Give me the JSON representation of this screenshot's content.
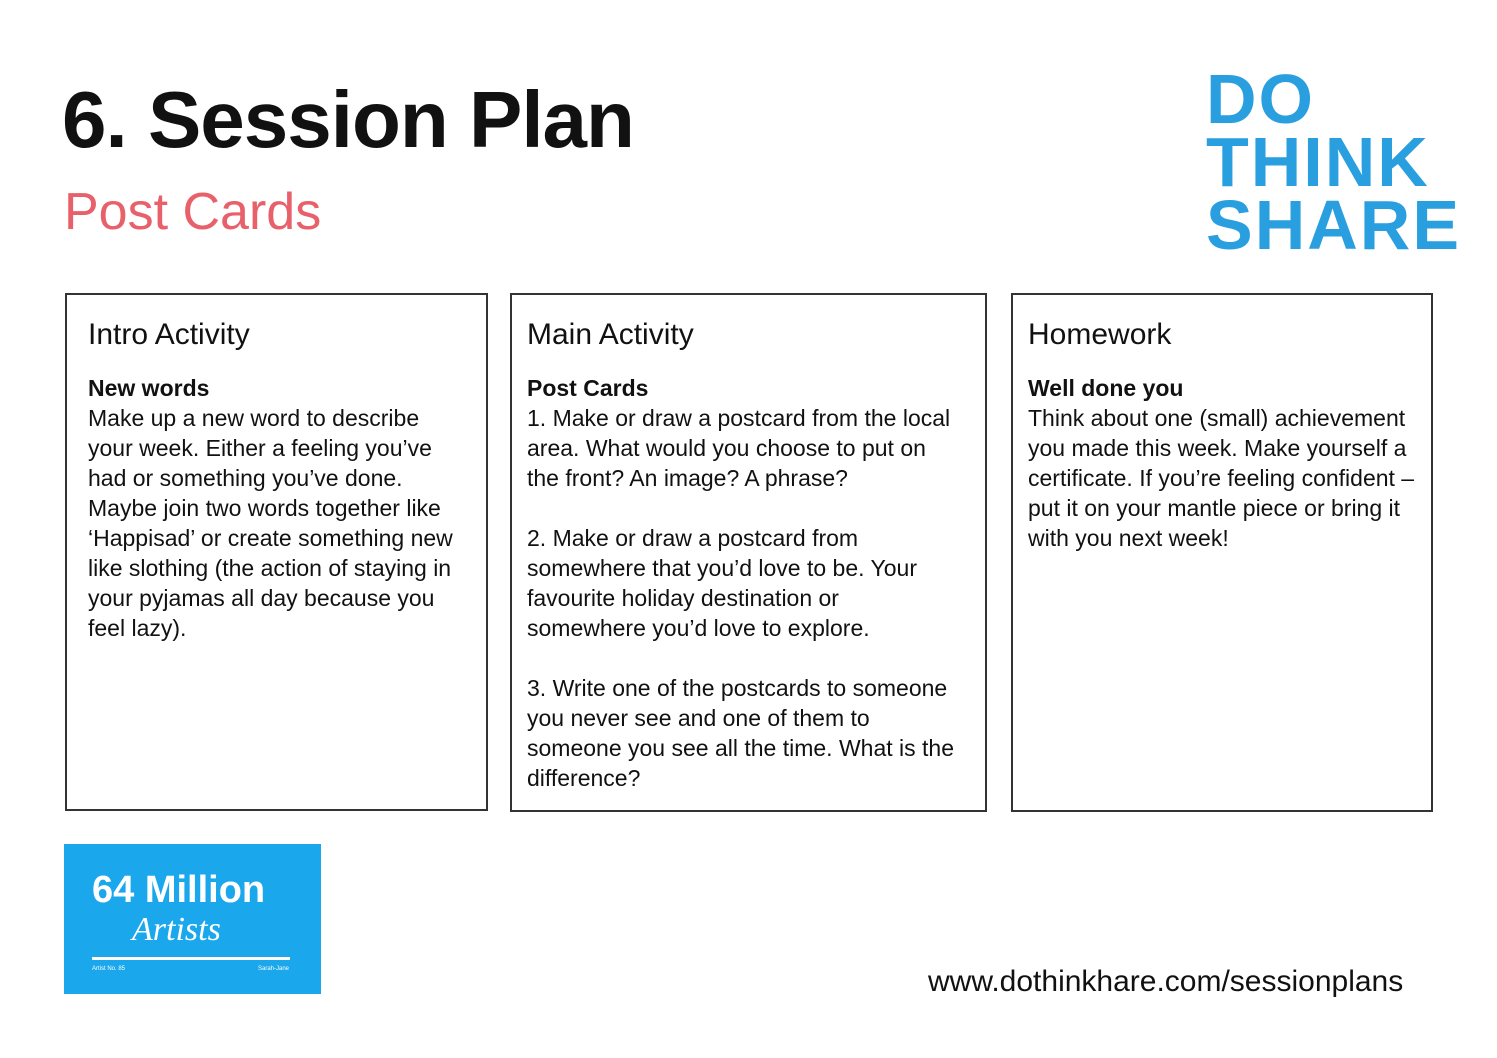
{
  "header": {
    "title": "6. Session Plan",
    "subtitle": "Post Cards"
  },
  "logo": {
    "lines": [
      "DO",
      "THINK",
      "SHARE"
    ]
  },
  "columns": [
    {
      "heading": "Intro Activity",
      "subheading": "New words",
      "paragraphs": [
        "Make up a new word to describe your week. Either a feeling you’ve had or something you’ve done. Maybe join two words together like ‘Happisad’ or create something new like slothing (the action of staying in your pyjamas all day because you feel lazy)."
      ]
    },
    {
      "heading": "Main Activity",
      "subheading": "Post Cards",
      "paragraphs": [
        "1. Make or draw a postcard from the local area. What would you choose to put on the front? An image? A phrase?",
        "2. Make or draw a postcard from somewhere that you’d love to be. Your favourite holiday destination or somewhere you’d love to explore.",
        "3. Write one of the postcards to someone you never see and one of them to someone you see all the time. What is the difference?"
      ]
    },
    {
      "heading": "Homework",
      "subheading": "Well done you",
      "paragraphs": [
        "Think about one (small) achievement you made this week. Make yourself a certificate. If you’re feeling confident – put it on your mantle piece or bring it with you next week!"
      ]
    }
  ],
  "badge": {
    "title": "64 Million",
    "script": "Artists",
    "left_note": "Artist No. 85",
    "right_note": "Sarah-Jane"
  },
  "footer": {
    "url": "www.dothinkhare.com/sessionplans"
  }
}
